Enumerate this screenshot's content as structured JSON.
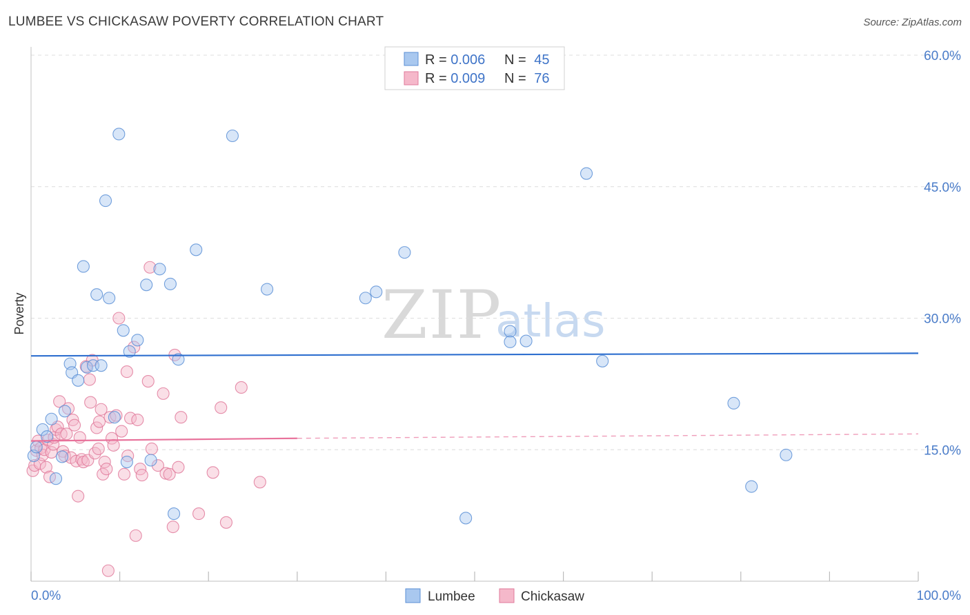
{
  "title": "LUMBEE VS CHICKASAW POVERTY CORRELATION CHART",
  "source": "Source: ZipAtlas.com",
  "watermark": {
    "zip": "ZIP",
    "atlas": "atlas"
  },
  "colors": {
    "lumbee_fill": "#a9c8ef",
    "lumbee_stroke": "#5b8fd6",
    "lumbee_line": "#2e6fcf",
    "chickasaw_fill": "#f5b8ca",
    "chickasaw_stroke": "#e07a9b",
    "chickasaw_line": "#e8729b",
    "grid": "#dcdcdc",
    "axis_text": "#4a7cc9"
  },
  "legend": {
    "items": [
      {
        "r_label": "R = ",
        "r_value": "0.006",
        "n_label": "N = ",
        "n_value": "45"
      },
      {
        "r_label": "R = ",
        "r_value": "0.009",
        "n_label": "N = ",
        "n_value": "76"
      }
    ]
  },
  "bottom_legend": [
    "Lumbee",
    "Chickasaw"
  ],
  "chart_data": {
    "type": "scatter",
    "title": "LUMBEE VS CHICKASAW POVERTY CORRELATION CHART",
    "xlabel": "",
    "ylabel": "Poverty",
    "xlim": [
      0,
      100
    ],
    "ylim": [
      0,
      60
    ],
    "y_ticks": [
      15,
      30,
      45,
      60
    ],
    "y_tick_labels": [
      "15.0%",
      "30.0%",
      "45.0%",
      "60.0%"
    ],
    "x_tick_labels": [
      "0.0%",
      "100.0%"
    ],
    "grid": true,
    "series": [
      {
        "name": "Lumbee",
        "R": 0.006,
        "N": 45,
        "trend": {
          "x": [
            0,
            100
          ],
          "y": [
            25.7,
            26.0
          ]
        },
        "points": [
          [
            0.3,
            14.3
          ],
          [
            0.6,
            15.3
          ],
          [
            1.3,
            17.3
          ],
          [
            1.8,
            16.5
          ],
          [
            2.3,
            18.5
          ],
          [
            2.8,
            11.7
          ],
          [
            3.5,
            14.2
          ],
          [
            3.8,
            19.4
          ],
          [
            4.4,
            24.8
          ],
          [
            4.6,
            23.8
          ],
          [
            5.3,
            22.9
          ],
          [
            5.9,
            35.9
          ],
          [
            6.3,
            24.4
          ],
          [
            7.0,
            24.6
          ],
          [
            7.4,
            32.7
          ],
          [
            7.9,
            24.6
          ],
          [
            8.4,
            43.4
          ],
          [
            8.8,
            32.3
          ],
          [
            9.4,
            18.7
          ],
          [
            9.9,
            51.0
          ],
          [
            10.4,
            28.6
          ],
          [
            10.8,
            13.6
          ],
          [
            11.1,
            26.2
          ],
          [
            12.0,
            27.5
          ],
          [
            13.0,
            33.8
          ],
          [
            13.5,
            13.8
          ],
          [
            14.5,
            35.6
          ],
          [
            15.7,
            33.9
          ],
          [
            16.1,
            7.7
          ],
          [
            16.6,
            25.3
          ],
          [
            18.6,
            37.8
          ],
          [
            22.7,
            50.8
          ],
          [
            26.6,
            33.3
          ],
          [
            37.7,
            32.3
          ],
          [
            38.9,
            33.0
          ],
          [
            42.1,
            37.5
          ],
          [
            49.0,
            7.2
          ],
          [
            54.0,
            28.5
          ],
          [
            54.0,
            27.3
          ],
          [
            55.8,
            27.4
          ],
          [
            62.6,
            46.5
          ],
          [
            64.4,
            25.1
          ],
          [
            79.2,
            20.3
          ],
          [
            81.2,
            10.8
          ],
          [
            85.1,
            14.4
          ]
        ]
      },
      {
        "name": "Chickasaw",
        "R": 0.009,
        "N": 76,
        "trend": {
          "x": [
            0,
            30
          ],
          "y": [
            16.0,
            16.3
          ],
          "dashed_extension": {
            "x": [
              30,
              100
            ],
            "y": [
              16.3,
              16.8
            ]
          }
        },
        "points": [
          [
            0.2,
            12.6
          ],
          [
            0.4,
            13.2
          ],
          [
            0.6,
            14.9
          ],
          [
            0.8,
            16.0
          ],
          [
            1.0,
            13.4
          ],
          [
            1.1,
            15.2
          ],
          [
            1.3,
            14.4
          ],
          [
            1.5,
            15.0
          ],
          [
            1.7,
            13.0
          ],
          [
            1.9,
            16.1
          ],
          [
            2.1,
            11.9
          ],
          [
            2.3,
            14.7
          ],
          [
            2.5,
            15.6
          ],
          [
            2.6,
            16.4
          ],
          [
            2.8,
            17.3
          ],
          [
            3.0,
            17.6
          ],
          [
            3.2,
            20.5
          ],
          [
            3.4,
            16.8
          ],
          [
            3.6,
            14.8
          ],
          [
            3.8,
            14.3
          ],
          [
            4.0,
            16.8
          ],
          [
            4.2,
            19.7
          ],
          [
            4.5,
            14.1
          ],
          [
            4.7,
            18.4
          ],
          [
            4.9,
            17.8
          ],
          [
            5.1,
            13.7
          ],
          [
            5.3,
            9.7
          ],
          [
            5.5,
            16.4
          ],
          [
            5.7,
            13.9
          ],
          [
            5.9,
            13.6
          ],
          [
            6.2,
            24.5
          ],
          [
            6.4,
            13.8
          ],
          [
            6.6,
            23.0
          ],
          [
            6.7,
            20.4
          ],
          [
            6.9,
            25.2
          ],
          [
            7.2,
            14.6
          ],
          [
            7.4,
            17.5
          ],
          [
            7.6,
            15.1
          ],
          [
            7.7,
            18.2
          ],
          [
            7.9,
            19.6
          ],
          [
            8.1,
            12.2
          ],
          [
            8.3,
            13.6
          ],
          [
            8.5,
            12.8
          ],
          [
            8.7,
            1.2
          ],
          [
            8.9,
            18.7
          ],
          [
            9.1,
            16.3
          ],
          [
            9.3,
            15.5
          ],
          [
            9.6,
            18.9
          ],
          [
            9.9,
            30.0
          ],
          [
            10.2,
            17.1
          ],
          [
            10.5,
            12.2
          ],
          [
            10.8,
            23.9
          ],
          [
            10.9,
            14.3
          ],
          [
            11.2,
            18.6
          ],
          [
            11.6,
            26.7
          ],
          [
            11.8,
            5.2
          ],
          [
            12.0,
            18.4
          ],
          [
            12.3,
            12.8
          ],
          [
            12.5,
            12.1
          ],
          [
            13.2,
            22.8
          ],
          [
            13.4,
            35.8
          ],
          [
            13.6,
            15.1
          ],
          [
            14.3,
            13.2
          ],
          [
            14.9,
            21.4
          ],
          [
            15.2,
            12.3
          ],
          [
            15.6,
            12.2
          ],
          [
            16.0,
            6.2
          ],
          [
            16.2,
            25.8
          ],
          [
            16.6,
            13.0
          ],
          [
            16.9,
            18.7
          ],
          [
            18.9,
            7.7
          ],
          [
            20.5,
            12.4
          ],
          [
            21.4,
            19.8
          ],
          [
            22.0,
            6.7
          ],
          [
            23.7,
            22.1
          ],
          [
            25.8,
            11.3
          ]
        ]
      }
    ]
  }
}
